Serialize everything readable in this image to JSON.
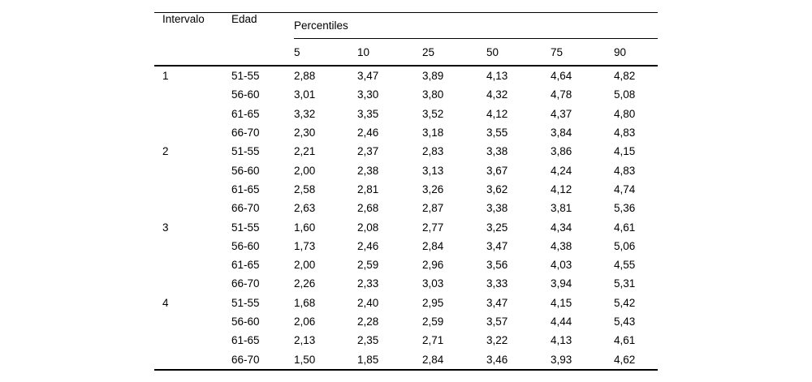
{
  "table": {
    "header": {
      "intervalo": "Intervalo",
      "edad": "Edad",
      "percentiles_group": "Percentiles",
      "percentile_levels": [
        "5",
        "10",
        "25",
        "50",
        "75",
        "90"
      ]
    },
    "rows": [
      [
        "1",
        "51-55",
        "2,88",
        "3,47",
        "3,89",
        "4,13",
        "4,64",
        "4,82"
      ],
      [
        "",
        "56-60",
        "3,01",
        "3,30",
        "3,80",
        "4,32",
        "4,78",
        "5,08"
      ],
      [
        "",
        "61-65",
        "3,32",
        "3,35",
        "3,52",
        "4,12",
        "4,37",
        "4,80"
      ],
      [
        "",
        "66-70",
        "2,30",
        "2,46",
        "3,18",
        "3,55",
        "3,84",
        "4,83"
      ],
      [
        "2",
        "51-55",
        "2,21",
        "2,37",
        "2,83",
        "3,38",
        "3,86",
        "4,15"
      ],
      [
        "",
        "56-60",
        "2,00",
        "2,38",
        "3,13",
        "3,67",
        "4,24",
        "4,83"
      ],
      [
        "",
        "61-65",
        "2,58",
        "2,81",
        "3,26",
        "3,62",
        "4,12",
        "4,74"
      ],
      [
        "",
        "66-70",
        "2,63",
        "2,68",
        "2,87",
        "3,38",
        "3,81",
        "5,36"
      ],
      [
        "3",
        "51-55",
        "1,60",
        "2,08",
        "2,77",
        "3,25",
        "4,34",
        "4,61"
      ],
      [
        "",
        "56-60",
        "1,73",
        "2,46",
        "2,84",
        "3,47",
        "4,38",
        "5,06"
      ],
      [
        "",
        "61-65",
        "2,00",
        "2,59",
        "2,96",
        "3,56",
        "4,03",
        "4,55"
      ],
      [
        "",
        "66-70",
        "2,26",
        "2,33",
        "3,03",
        "3,33",
        "3,94",
        "5,31"
      ],
      [
        "4",
        "51-55",
        "1,68",
        "2,40",
        "2,95",
        "3,47",
        "4,15",
        "5,42"
      ],
      [
        "",
        "56-60",
        "2,06",
        "2,28",
        "2,59",
        "3,57",
        "4,44",
        "5,43"
      ],
      [
        "",
        "61-65",
        "2,13",
        "2,35",
        "2,71",
        "3,22",
        "4,13",
        "4,61"
      ],
      [
        "",
        "66-70",
        "1,50",
        "1,85",
        "2,84",
        "3,46",
        "3,93",
        "4,62"
      ]
    ],
    "colors": {
      "text": "#000000",
      "background": "#ffffff",
      "rule": "#000000"
    }
  }
}
